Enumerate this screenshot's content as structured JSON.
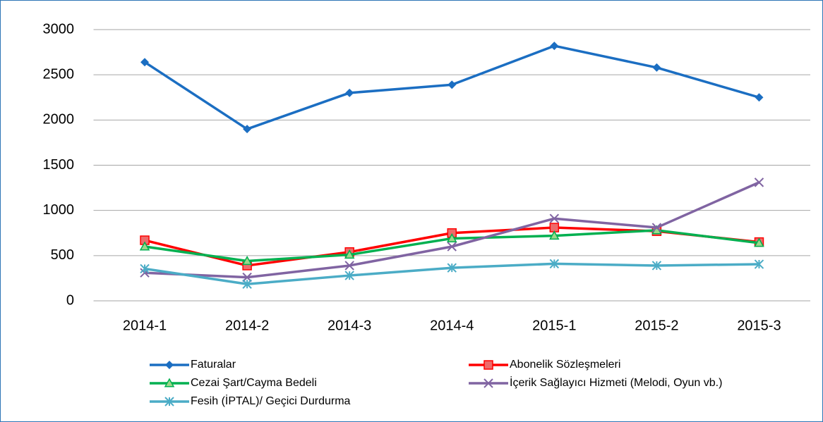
{
  "chart_data": {
    "type": "line",
    "categories": [
      "2014-1",
      "2014-2",
      "2014-3",
      "2014-4",
      "2015-1",
      "2015-2",
      "2015-3"
    ],
    "series": [
      {
        "name": "Faturalar",
        "color": "#1b6ec2",
        "marker": "diamond",
        "values": [
          2640,
          1900,
          2300,
          2390,
          2820,
          2580,
          2250
        ]
      },
      {
        "name": "Abonelik Sözleşmeleri",
        "color": "#ff0000",
        "marker": "square",
        "values": [
          670,
          390,
          540,
          750,
          810,
          770,
          650
        ]
      },
      {
        "name": "Cezai Şart/Cayma Bedeli",
        "color": "#00b050",
        "marker": "triangle",
        "values": [
          600,
          440,
          510,
          690,
          720,
          780,
          640
        ]
      },
      {
        "name": "İçerik Sağlayıcı Hizmeti (Melodi, Oyun vb.)",
        "color": "#8064a2",
        "marker": "x",
        "values": [
          310,
          260,
          390,
          600,
          910,
          810,
          1310
        ]
      },
      {
        "name": "Fesih (İPTAL)/ Geçici Durdurma",
        "color": "#4bacc6",
        "marker": "star",
        "values": [
          355,
          185,
          280,
          365,
          410,
          390,
          405
        ]
      }
    ],
    "ylim": [
      0,
      3000
    ],
    "yticks": [
      0,
      500,
      1000,
      1500,
      2000,
      2500,
      3000
    ],
    "grid": true,
    "legend": "bottom"
  }
}
